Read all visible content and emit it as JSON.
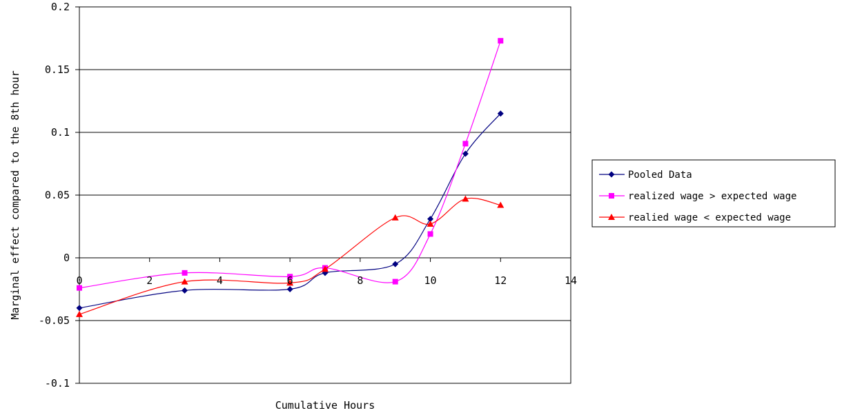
{
  "chart_data": {
    "type": "line",
    "title": "",
    "xlabel": "Cumulative Hours",
    "ylabel": "Marginal effect compared to the 8th hour",
    "xlim": [
      0,
      14
    ],
    "ylim": [
      -0.1,
      0.2
    ],
    "x_ticks": [
      "0",
      "2",
      "4",
      "6",
      "8",
      "10",
      "12",
      "14"
    ],
    "y_ticks": [
      "0.2",
      "0.15",
      "0.1",
      "0.05",
      "0",
      "-0.05",
      "-0.1"
    ],
    "grid": "horizontal",
    "legend_position": "right",
    "series": [
      {
        "name": "Pooled Data",
        "color": "#000080",
        "marker": "diamond",
        "smooth": true,
        "x": [
          0,
          3,
          6,
          7,
          9,
          10,
          11,
          12
        ],
        "y": [
          -0.04,
          -0.026,
          -0.025,
          -0.012,
          -0.005,
          0.031,
          0.083,
          0.115
        ]
      },
      {
        "name": "realized wage > expected wage",
        "color": "#ff00ff",
        "marker": "square",
        "smooth": true,
        "x": [
          0,
          3,
          6,
          7,
          9,
          10,
          11,
          12
        ],
        "y": [
          -0.024,
          -0.012,
          -0.015,
          -0.008,
          -0.019,
          0.019,
          0.091,
          0.173
        ]
      },
      {
        "name": "realied wage < expected wage",
        "color": "#ff0000",
        "marker": "triangle",
        "smooth": true,
        "x": [
          0,
          3,
          6,
          7,
          9,
          10,
          11,
          12
        ],
        "y": [
          -0.045,
          -0.019,
          -0.02,
          -0.009,
          0.032,
          0.027,
          0.047,
          0.042
        ]
      }
    ]
  }
}
